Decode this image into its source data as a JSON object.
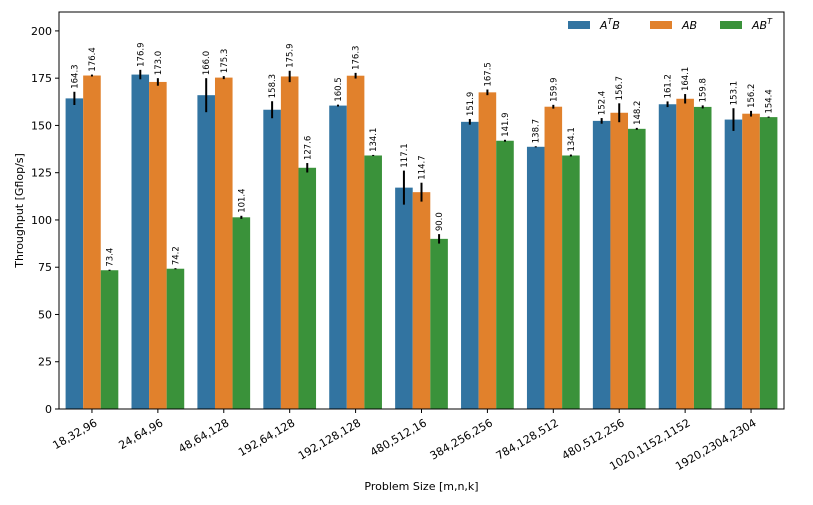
{
  "chart_data": {
    "type": "bar",
    "xlabel": "Problem Size [m,n,k]",
    "ylabel": "Throughput [Gflop/s]",
    "ylim": [
      0,
      210
    ],
    "yticks": [
      0,
      25,
      50,
      75,
      100,
      125,
      150,
      175,
      200
    ],
    "grid": false,
    "legend_position": "top-right",
    "categories": [
      "18,32,96",
      "24,64,96",
      "48,64,128",
      "192,64,128",
      "192,128,128",
      "480,512,16",
      "384,256,256",
      "784,128,512",
      "480,512,256",
      "1020,1152,1152",
      "1920,2304,2304"
    ],
    "series": [
      {
        "name": "A^T B",
        "legend_base": "A",
        "legend_sup": "T",
        "legend_tail": "B",
        "color": "#3274a1",
        "values": [
          164.3,
          176.9,
          166.0,
          158.3,
          160.5,
          117.1,
          151.9,
          138.7,
          152.4,
          161.2,
          153.1
        ],
        "labels": [
          "164.3",
          "176.9",
          "166.0",
          "158.3",
          "160.5",
          "117.1",
          "151.9",
          "138.7",
          "152.4",
          "161.2",
          "153.1"
        ],
        "err": [
          3.5,
          2.5,
          9,
          4.5,
          0.5,
          9,
          1.5,
          0.3,
          1.5,
          1.5,
          6
        ]
      },
      {
        "name": "AB",
        "legend_base": "AB",
        "legend_sup": "",
        "legend_tail": "",
        "color": "#e1812c",
        "values": [
          176.4,
          173.0,
          175.3,
          175.9,
          176.3,
          114.7,
          167.5,
          159.9,
          156.7,
          164.1,
          156.2
        ],
        "labels": [
          "176.4",
          "173.0",
          "175.3",
          "175.9",
          "176.3",
          "114.7",
          "167.5",
          "159.9",
          "156.7",
          "164.1",
          "156.2"
        ],
        "err": [
          0.5,
          2,
          0.8,
          3,
          1.5,
          5,
          1.5,
          1,
          5,
          2.5,
          1.5
        ]
      },
      {
        "name": "AB^T",
        "legend_base": "AB",
        "legend_sup": "T",
        "legend_tail": "",
        "color": "#3a923a",
        "values": [
          73.4,
          74.2,
          101.4,
          127.6,
          134.1,
          90.0,
          141.9,
          134.1,
          148.2,
          159.8,
          154.4
        ],
        "labels": [
          "73.4",
          "74.2",
          "101.4",
          "127.6",
          "134.1",
          "90.0",
          "141.9",
          "134.1",
          "148.2",
          "159.8",
          "154.4"
        ],
        "err": [
          0.3,
          0.3,
          0.8,
          2.5,
          0.3,
          2.5,
          0.5,
          0.5,
          0.5,
          0.8,
          0.3
        ]
      }
    ]
  }
}
